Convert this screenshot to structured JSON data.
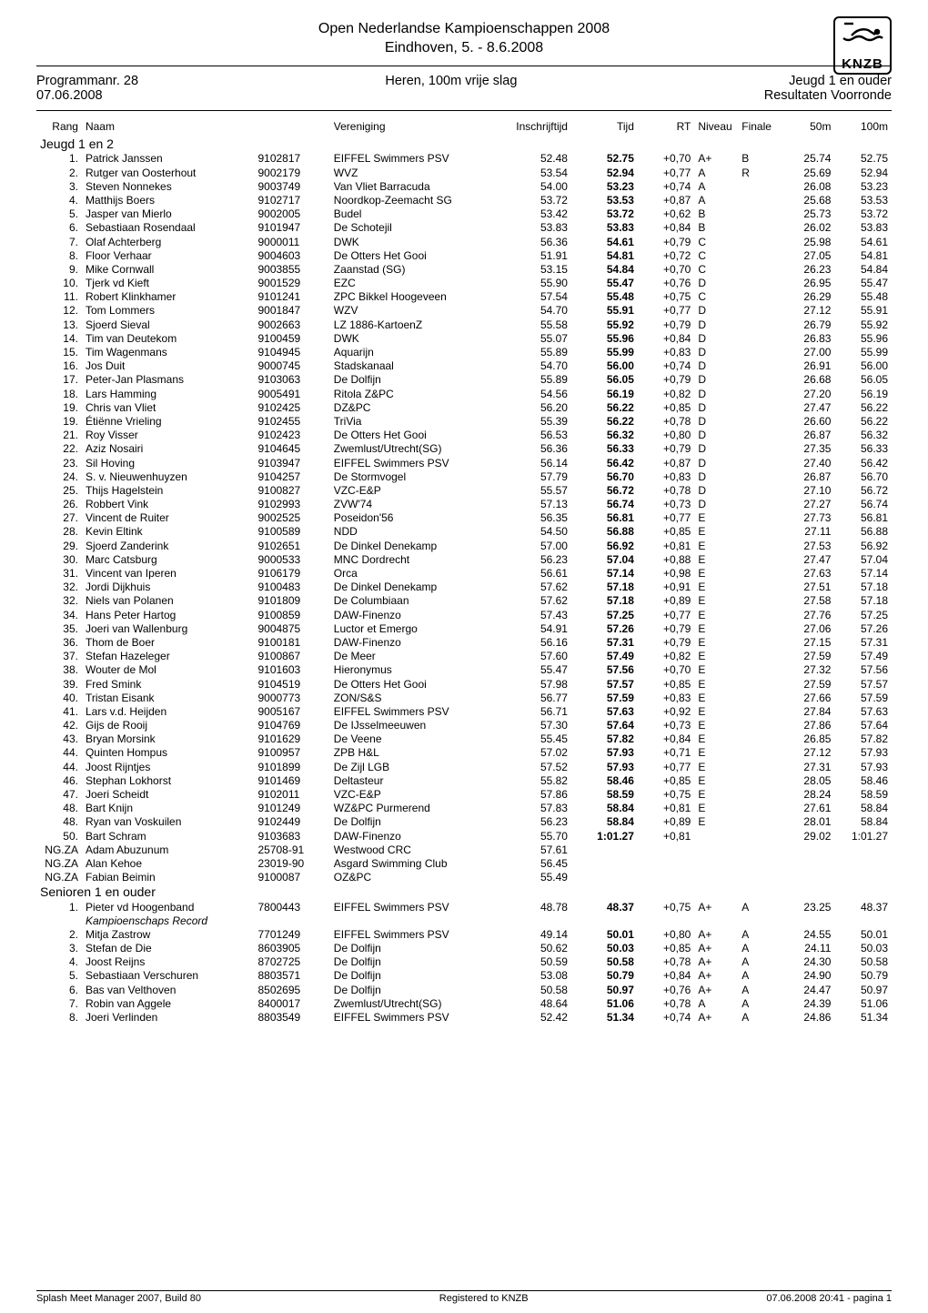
{
  "event": {
    "title_line1": "Open Nederlandse Kampioenschappen 2008",
    "title_line2": "Eindhoven, 5. - 8.6.2008",
    "logo_text": "KNZB"
  },
  "header": {
    "left_line1": "Programmanr. 28",
    "left_line2": "07.06.2008",
    "center": "Heren, 100m vrije slag",
    "right_line1": "Jeugd 1 en ouder",
    "right_line2": "Resultaten Voorronde"
  },
  "columns": {
    "rank": "Rang",
    "name": "Naam",
    "club": "Vereniging",
    "inschrijf": "Inschrijftijd",
    "tijd": "Tijd",
    "rt": "RT",
    "niveau": "Niveau",
    "finale": "Finale",
    "m50": "50m",
    "m100": "100m"
  },
  "sections": [
    {
      "label": "Jeugd 1 en 2",
      "rows": [
        {
          "rk": "1.",
          "nm": "Patrick Janssen",
          "lic": "9102817",
          "cl": "EIFFEL Swimmers PSV",
          "in": "52.48",
          "td": "52.75",
          "rt": "+0,70",
          "nv": "A+",
          "fi": "B",
          "m50": "25.74",
          "m100": "52.75"
        },
        {
          "rk": "2.",
          "nm": "Rutger van Oosterhout",
          "lic": "9002179",
          "cl": "WVZ",
          "in": "53.54",
          "td": "52.94",
          "rt": "+0,77",
          "nv": "A",
          "fi": "R",
          "m50": "25.69",
          "m100": "52.94"
        },
        {
          "rk": "3.",
          "nm": "Steven Nonnekes",
          "lic": "9003749",
          "cl": "Van Vliet Barracuda",
          "in": "54.00",
          "td": "53.23",
          "rt": "+0,74",
          "nv": "A",
          "fi": "",
          "m50": "26.08",
          "m100": "53.23"
        },
        {
          "rk": "4.",
          "nm": "Matthijs Boers",
          "lic": "9102717",
          "cl": "Noordkop-Zeemacht SG",
          "in": "53.72",
          "td": "53.53",
          "rt": "+0,87",
          "nv": "A",
          "fi": "",
          "m50": "25.68",
          "m100": "53.53"
        },
        {
          "rk": "5.",
          "nm": "Jasper van Mierlo",
          "lic": "9002005",
          "cl": "Budel",
          "in": "53.42",
          "td": "53.72",
          "rt": "+0,62",
          "nv": "B",
          "fi": "",
          "m50": "25.73",
          "m100": "53.72"
        },
        {
          "rk": "6.",
          "nm": "Sebastiaan Rosendaal",
          "lic": "9101947",
          "cl": "De Schotejil",
          "in": "53.83",
          "td": "53.83",
          "rt": "+0,84",
          "nv": "B",
          "fi": "",
          "m50": "26.02",
          "m100": "53.83"
        },
        {
          "rk": "7.",
          "nm": "Olaf Achterberg",
          "lic": "9000011",
          "cl": "DWK",
          "in": "56.36",
          "td": "54.61",
          "rt": "+0,79",
          "nv": "C",
          "fi": "",
          "m50": "25.98",
          "m100": "54.61"
        },
        {
          "rk": "8.",
          "nm": "Floor Verhaar",
          "lic": "9004603",
          "cl": "De Otters Het Gooi",
          "in": "51.91",
          "td": "54.81",
          "rt": "+0,72",
          "nv": "C",
          "fi": "",
          "m50": "27.05",
          "m100": "54.81"
        },
        {
          "rk": "9.",
          "nm": "Mike Cornwall",
          "lic": "9003855",
          "cl": "Zaanstad (SG)",
          "in": "53.15",
          "td": "54.84",
          "rt": "+0,70",
          "nv": "C",
          "fi": "",
          "m50": "26.23",
          "m100": "54.84"
        },
        {
          "rk": "10.",
          "nm": "Tjerk vd Kieft",
          "lic": "9001529",
          "cl": "EZC",
          "in": "55.90",
          "td": "55.47",
          "rt": "+0,76",
          "nv": "D",
          "fi": "",
          "m50": "26.95",
          "m100": "55.47"
        },
        {
          "rk": "11.",
          "nm": "Robert Klinkhamer",
          "lic": "9101241",
          "cl": "ZPC Bikkel Hoogeveen",
          "in": "57.54",
          "td": "55.48",
          "rt": "+0,75",
          "nv": "C",
          "fi": "",
          "m50": "26.29",
          "m100": "55.48"
        },
        {
          "rk": "12.",
          "nm": "Tom Lommers",
          "lic": "9001847",
          "cl": "WZV",
          "in": "54.70",
          "td": "55.91",
          "rt": "+0,77",
          "nv": "D",
          "fi": "",
          "m50": "27.12",
          "m100": "55.91"
        },
        {
          "rk": "13.",
          "nm": "Sjoerd Sieval",
          "lic": "9002663",
          "cl": "LZ 1886-KartoenZ",
          "in": "55.58",
          "td": "55.92",
          "rt": "+0,79",
          "nv": "D",
          "fi": "",
          "m50": "26.79",
          "m100": "55.92"
        },
        {
          "rk": "14.",
          "nm": "Tim van Deutekom",
          "lic": "9100459",
          "cl": "DWK",
          "in": "55.07",
          "td": "55.96",
          "rt": "+0,84",
          "nv": "D",
          "fi": "",
          "m50": "26.83",
          "m100": "55.96"
        },
        {
          "rk": "15.",
          "nm": "Tim Wagenmans",
          "lic": "9104945",
          "cl": "Aquarijn",
          "in": "55.89",
          "td": "55.99",
          "rt": "+0,83",
          "nv": "D",
          "fi": "",
          "m50": "27.00",
          "m100": "55.99"
        },
        {
          "rk": "16.",
          "nm": "Jos Duit",
          "lic": "9000745",
          "cl": "Stadskanaal",
          "in": "54.70",
          "td": "56.00",
          "rt": "+0,74",
          "nv": "D",
          "fi": "",
          "m50": "26.91",
          "m100": "56.00"
        },
        {
          "rk": "17.",
          "nm": "Peter-Jan Plasmans",
          "lic": "9103063",
          "cl": "De Dolfijn",
          "in": "55.89",
          "td": "56.05",
          "rt": "+0,79",
          "nv": "D",
          "fi": "",
          "m50": "26.68",
          "m100": "56.05"
        },
        {
          "rk": "18.",
          "nm": "Lars Hamming",
          "lic": "9005491",
          "cl": "Ritola Z&PC",
          "in": "54.56",
          "td": "56.19",
          "rt": "+0,82",
          "nv": "D",
          "fi": "",
          "m50": "27.20",
          "m100": "56.19"
        },
        {
          "rk": "19.",
          "nm": "Chris van Vliet",
          "lic": "9102425",
          "cl": "DZ&PC",
          "in": "56.20",
          "td": "56.22",
          "rt": "+0,85",
          "nv": "D",
          "fi": "",
          "m50": "27.47",
          "m100": "56.22"
        },
        {
          "rk": "19.",
          "nm": "Étiënne Vrieling",
          "lic": "9102455",
          "cl": "TriVia",
          "in": "55.39",
          "td": "56.22",
          "rt": "+0,78",
          "nv": "D",
          "fi": "",
          "m50": "26.60",
          "m100": "56.22"
        },
        {
          "rk": "21.",
          "nm": "Roy Visser",
          "lic": "9102423",
          "cl": "De Otters Het Gooi",
          "in": "56.53",
          "td": "56.32",
          "rt": "+0,80",
          "nv": "D",
          "fi": "",
          "m50": "26.87",
          "m100": "56.32"
        },
        {
          "rk": "22.",
          "nm": "Aziz Nosairi",
          "lic": "9104645",
          "cl": "Zwemlust/Utrecht(SG)",
          "in": "56.36",
          "td": "56.33",
          "rt": "+0,79",
          "nv": "D",
          "fi": "",
          "m50": "27.35",
          "m100": "56.33"
        },
        {
          "rk": "23.",
          "nm": "Sil Hoving",
          "lic": "9103947",
          "cl": "EIFFEL Swimmers PSV",
          "in": "56.14",
          "td": "56.42",
          "rt": "+0,87",
          "nv": "D",
          "fi": "",
          "m50": "27.40",
          "m100": "56.42"
        },
        {
          "rk": "24.",
          "nm": "S. v. Nieuwenhuyzen",
          "lic": "9104257",
          "cl": "De Stormvogel",
          "in": "57.79",
          "td": "56.70",
          "rt": "+0,83",
          "nv": "D",
          "fi": "",
          "m50": "26.87",
          "m100": "56.70"
        },
        {
          "rk": "25.",
          "nm": "Thijs Hagelstein",
          "lic": "9100827",
          "cl": "VZC-E&P",
          "in": "55.57",
          "td": "56.72",
          "rt": "+0,78",
          "nv": "D",
          "fi": "",
          "m50": "27.10",
          "m100": "56.72"
        },
        {
          "rk": "26.",
          "nm": "Robbert Vink",
          "lic": "9102993",
          "cl": "ZVW'74",
          "in": "57.13",
          "td": "56.74",
          "rt": "+0,73",
          "nv": "D",
          "fi": "",
          "m50": "27.27",
          "m100": "56.74"
        },
        {
          "rk": "27.",
          "nm": "Vincent de Ruiter",
          "lic": "9002525",
          "cl": "Poseidon'56",
          "in": "56.35",
          "td": "56.81",
          "rt": "+0,77",
          "nv": "E",
          "fi": "",
          "m50": "27.73",
          "m100": "56.81"
        },
        {
          "rk": "28.",
          "nm": "Kevin Eltink",
          "lic": "9100589",
          "cl": "NDD",
          "in": "54.50",
          "td": "56.88",
          "rt": "+0,85",
          "nv": "E",
          "fi": "",
          "m50": "27.11",
          "m100": "56.88"
        },
        {
          "rk": "29.",
          "nm": "Sjoerd Zanderink",
          "lic": "9102651",
          "cl": "De Dinkel Denekamp",
          "in": "57.00",
          "td": "56.92",
          "rt": "+0,81",
          "nv": "E",
          "fi": "",
          "m50": "27.53",
          "m100": "56.92"
        },
        {
          "rk": "30.",
          "nm": "Marc Catsburg",
          "lic": "9000533",
          "cl": "MNC Dordrecht",
          "in": "56.23",
          "td": "57.04",
          "rt": "+0,88",
          "nv": "E",
          "fi": "",
          "m50": "27.47",
          "m100": "57.04"
        },
        {
          "rk": "31.",
          "nm": "Vincent van Iperen",
          "lic": "9106179",
          "cl": "Orca",
          "in": "56.61",
          "td": "57.14",
          "rt": "+0,98",
          "nv": "E",
          "fi": "",
          "m50": "27.63",
          "m100": "57.14"
        },
        {
          "rk": "32.",
          "nm": "Jordi Dijkhuis",
          "lic": "9100483",
          "cl": "De Dinkel Denekamp",
          "in": "57.62",
          "td": "57.18",
          "rt": "+0,91",
          "nv": "E",
          "fi": "",
          "m50": "27.51",
          "m100": "57.18"
        },
        {
          "rk": "32.",
          "nm": "Niels van Polanen",
          "lic": "9101809",
          "cl": "De Columbiaan",
          "in": "57.62",
          "td": "57.18",
          "rt": "+0,89",
          "nv": "E",
          "fi": "",
          "m50": "27.58",
          "m100": "57.18"
        },
        {
          "rk": "34.",
          "nm": "Hans Peter Hartog",
          "lic": "9100859",
          "cl": "DAW-Finenzo",
          "in": "57.43",
          "td": "57.25",
          "rt": "+0,77",
          "nv": "E",
          "fi": "",
          "m50": "27.76",
          "m100": "57.25"
        },
        {
          "rk": "35.",
          "nm": "Joeri van Wallenburg",
          "lic": "9004875",
          "cl": "Luctor et Emergo",
          "in": "54.91",
          "td": "57.26",
          "rt": "+0,79",
          "nv": "E",
          "fi": "",
          "m50": "27.06",
          "m100": "57.26"
        },
        {
          "rk": "36.",
          "nm": "Thom de Boer",
          "lic": "9100181",
          "cl": "DAW-Finenzo",
          "in": "56.16",
          "td": "57.31",
          "rt": "+0,79",
          "nv": "E",
          "fi": "",
          "m50": "27.15",
          "m100": "57.31"
        },
        {
          "rk": "37.",
          "nm": "Stefan Hazeleger",
          "lic": "9100867",
          "cl": "De Meer",
          "in": "57.60",
          "td": "57.49",
          "rt": "+0,82",
          "nv": "E",
          "fi": "",
          "m50": "27.59",
          "m100": "57.49"
        },
        {
          "rk": "38.",
          "nm": "Wouter de Mol",
          "lic": "9101603",
          "cl": "Hieronymus",
          "in": "55.47",
          "td": "57.56",
          "rt": "+0,70",
          "nv": "E",
          "fi": "",
          "m50": "27.32",
          "m100": "57.56"
        },
        {
          "rk": "39.",
          "nm": "Fred Smink",
          "lic": "9104519",
          "cl": "De Otters Het Gooi",
          "in": "57.98",
          "td": "57.57",
          "rt": "+0,85",
          "nv": "E",
          "fi": "",
          "m50": "27.59",
          "m100": "57.57"
        },
        {
          "rk": "40.",
          "nm": "Tristan Eisank",
          "lic": "9000773",
          "cl": "ZON/S&S",
          "in": "56.77",
          "td": "57.59",
          "rt": "+0,83",
          "nv": "E",
          "fi": "",
          "m50": "27.66",
          "m100": "57.59"
        },
        {
          "rk": "41.",
          "nm": "Lars v.d. Heijden",
          "lic": "9005167",
          "cl": "EIFFEL Swimmers PSV",
          "in": "56.71",
          "td": "57.63",
          "rt": "+0,92",
          "nv": "E",
          "fi": "",
          "m50": "27.84",
          "m100": "57.63"
        },
        {
          "rk": "42.",
          "nm": "Gijs de Rooij",
          "lic": "9104769",
          "cl": "De IJsselmeeuwen",
          "in": "57.30",
          "td": "57.64",
          "rt": "+0,73",
          "nv": "E",
          "fi": "",
          "m50": "27.86",
          "m100": "57.64"
        },
        {
          "rk": "43.",
          "nm": "Bryan Morsink",
          "lic": "9101629",
          "cl": "De Veene",
          "in": "55.45",
          "td": "57.82",
          "rt": "+0,84",
          "nv": "E",
          "fi": "",
          "m50": "26.85",
          "m100": "57.82"
        },
        {
          "rk": "44.",
          "nm": "Quinten Hompus",
          "lic": "9100957",
          "cl": "ZPB H&L",
          "in": "57.02",
          "td": "57.93",
          "rt": "+0,71",
          "nv": "E",
          "fi": "",
          "m50": "27.12",
          "m100": "57.93"
        },
        {
          "rk": "44.",
          "nm": "Joost Rijntjes",
          "lic": "9101899",
          "cl": "De Zijl LGB",
          "in": "57.52",
          "td": "57.93",
          "rt": "+0,77",
          "nv": "E",
          "fi": "",
          "m50": "27.31",
          "m100": "57.93"
        },
        {
          "rk": "46.",
          "nm": "Stephan Lokhorst",
          "lic": "9101469",
          "cl": "Deltasteur",
          "in": "55.82",
          "td": "58.46",
          "rt": "+0,85",
          "nv": "E",
          "fi": "",
          "m50": "28.05",
          "m100": "58.46"
        },
        {
          "rk": "47.",
          "nm": "Joeri Scheidt",
          "lic": "9102011",
          "cl": "VZC-E&P",
          "in": "57.86",
          "td": "58.59",
          "rt": "+0,75",
          "nv": "E",
          "fi": "",
          "m50": "28.24",
          "m100": "58.59"
        },
        {
          "rk": "48.",
          "nm": "Bart Knijn",
          "lic": "9101249",
          "cl": "WZ&PC Purmerend",
          "in": "57.83",
          "td": "58.84",
          "rt": "+0,81",
          "nv": "E",
          "fi": "",
          "m50": "27.61",
          "m100": "58.84"
        },
        {
          "rk": "48.",
          "nm": "Ryan van Voskuilen",
          "lic": "9102449",
          "cl": "De Dolfijn",
          "in": "56.23",
          "td": "58.84",
          "rt": "+0,89",
          "nv": "E",
          "fi": "",
          "m50": "28.01",
          "m100": "58.84"
        },
        {
          "rk": "50.",
          "nm": "Bart Schram",
          "lic": "9103683",
          "cl": "DAW-Finenzo",
          "in": "55.70",
          "td": "1:01.27",
          "rt": "+0,81",
          "nv": "",
          "fi": "",
          "m50": "29.02",
          "m100": "1:01.27"
        },
        {
          "rk": "NG.ZA",
          "nm": "Adam Abuzunum",
          "lic": "25708-91",
          "cl": "Westwood CRC",
          "in": "57.61",
          "td": "",
          "rt": "",
          "nv": "",
          "fi": "",
          "m50": "",
          "m100": ""
        },
        {
          "rk": "NG.ZA",
          "nm": "Alan Kehoe",
          "lic": "23019-90",
          "cl": "Asgard Swimming Club",
          "in": "56.45",
          "td": "",
          "rt": "",
          "nv": "",
          "fi": "",
          "m50": "",
          "m100": ""
        },
        {
          "rk": "NG.ZA",
          "nm": "Fabian Beimin",
          "lic": "9100087",
          "cl": "OZ&PC",
          "in": "55.49",
          "td": "",
          "rt": "",
          "nv": "",
          "fi": "",
          "m50": "",
          "m100": ""
        }
      ]
    },
    {
      "label": "Senioren 1 en ouder",
      "rows": [
        {
          "rk": "1.",
          "nm": "Pieter vd Hoogenband",
          "lic": "7800443",
          "cl": "EIFFEL Swimmers PSV",
          "in": "48.78",
          "td": "48.37",
          "rt": "+0,75",
          "nv": "A+",
          "fi": "A",
          "m50": "23.25",
          "m100": "48.37",
          "sub": "Kampioenschaps Record"
        },
        {
          "rk": "2.",
          "nm": "Mitja Zastrow",
          "lic": "7701249",
          "cl": "EIFFEL Swimmers PSV",
          "in": "49.14",
          "td": "50.01",
          "rt": "+0,80",
          "nv": "A+",
          "fi": "A",
          "m50": "24.55",
          "m100": "50.01"
        },
        {
          "rk": "3.",
          "nm": "Stefan de Die",
          "lic": "8603905",
          "cl": "De Dolfijn",
          "in": "50.62",
          "td": "50.03",
          "rt": "+0,85",
          "nv": "A+",
          "fi": "A",
          "m50": "24.11",
          "m100": "50.03"
        },
        {
          "rk": "4.",
          "nm": "Joost Reijns",
          "lic": "8702725",
          "cl": "De Dolfijn",
          "in": "50.59",
          "td": "50.58",
          "rt": "+0,78",
          "nv": "A+",
          "fi": "A",
          "m50": "24.30",
          "m100": "50.58"
        },
        {
          "rk": "5.",
          "nm": "Sebastiaan Verschuren",
          "lic": "8803571",
          "cl": "De Dolfijn",
          "in": "53.08",
          "td": "50.79",
          "rt": "+0,84",
          "nv": "A+",
          "fi": "A",
          "m50": "24.90",
          "m100": "50.79"
        },
        {
          "rk": "6.",
          "nm": "Bas van Velthoven",
          "lic": "8502695",
          "cl": "De Dolfijn",
          "in": "50.58",
          "td": "50.97",
          "rt": "+0,76",
          "nv": "A+",
          "fi": "A",
          "m50": "24.47",
          "m100": "50.97"
        },
        {
          "rk": "7.",
          "nm": "Robin van Aggele",
          "lic": "8400017",
          "cl": "Zwemlust/Utrecht(SG)",
          "in": "48.64",
          "td": "51.06",
          "rt": "+0,78",
          "nv": "A",
          "fi": "A",
          "m50": "24.39",
          "m100": "51.06"
        },
        {
          "rk": "8.",
          "nm": "Joeri Verlinden",
          "lic": "8803549",
          "cl": "EIFFEL Swimmers PSV",
          "in": "52.42",
          "td": "51.34",
          "rt": "+0,74",
          "nv": "A+",
          "fi": "A",
          "m50": "24.86",
          "m100": "51.34"
        }
      ]
    }
  ],
  "footer": {
    "left": "Splash Meet Manager 2007, Build 80",
    "center": "Registered to KNZB",
    "right": "07.06.2008 20:41 - pagina 1"
  }
}
